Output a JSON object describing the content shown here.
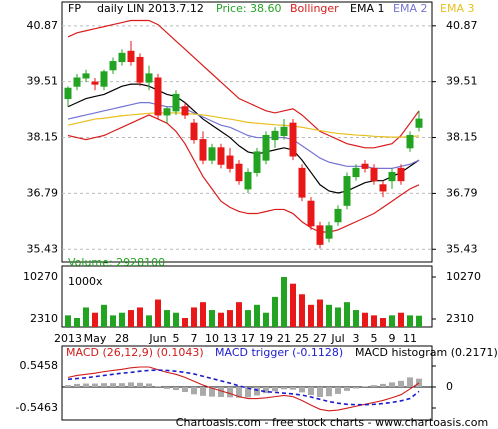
{
  "chart_data": [
    {
      "type": "candlestick",
      "title": "FP",
      "subtitle": "daily LIN 2013.7.12",
      "price_label": "Price: 38.60",
      "open": [
        39.1,
        39.4,
        39.6,
        39.5,
        39.4,
        39.8,
        40.0,
        40.25,
        40.1,
        39.5,
        39.6,
        38.7,
        38.8,
        38.9,
        38.5,
        38.1,
        37.6,
        37.9,
        37.7,
        37.5,
        36.9,
        37.3,
        37.6,
        38.1,
        38.2,
        38.5,
        37.4,
        36.6,
        36.0,
        35.7,
        36.1,
        36.5,
        37.2,
        37.5,
        37.4,
        37.0,
        37.1,
        37.4,
        37.9,
        38.4
      ],
      "high": [
        39.4,
        39.7,
        39.8,
        39.6,
        39.8,
        40.1,
        40.3,
        40.5,
        40.2,
        39.9,
        39.7,
        38.9,
        39.3,
        39.0,
        38.6,
        38.3,
        38.0,
        38.0,
        37.9,
        37.6,
        37.4,
        37.9,
        38.3,
        38.4,
        38.6,
        38.6,
        37.5,
        36.7,
        36.1,
        36.1,
        36.5,
        37.3,
        37.5,
        37.6,
        37.5,
        37.1,
        37.4,
        37.5,
        38.3,
        38.8
      ],
      "low": [
        38.9,
        39.3,
        39.5,
        39.3,
        39.3,
        39.7,
        39.9,
        39.9,
        39.4,
        39.3,
        38.6,
        38.5,
        38.7,
        38.6,
        38.0,
        37.5,
        37.5,
        37.4,
        37.3,
        37.0,
        36.8,
        37.2,
        37.5,
        37.9,
        38.1,
        37.6,
        36.6,
        35.9,
        35.45,
        35.6,
        36.0,
        36.4,
        37.1,
        37.3,
        37.0,
        36.7,
        36.9,
        37.0,
        37.8,
        38.3
      ],
      "close": [
        39.35,
        39.6,
        39.7,
        39.45,
        39.75,
        40.0,
        40.2,
        40.0,
        39.5,
        39.7,
        38.7,
        38.85,
        39.2,
        38.7,
        38.1,
        37.6,
        37.9,
        37.5,
        37.4,
        37.1,
        37.3,
        37.8,
        38.2,
        38.3,
        38.4,
        37.7,
        36.7,
        36.0,
        35.55,
        36.0,
        36.4,
        37.2,
        37.4,
        37.4,
        37.1,
        36.85,
        37.3,
        37.1,
        38.2,
        38.6
      ],
      "up_color": "#22a322",
      "down_color": "#e81818",
      "series": [
        {
          "name": "Bollinger",
          "color": "#d81c1c",
          "upper": [
            40.6,
            40.7,
            40.75,
            40.8,
            40.85,
            40.9,
            40.95,
            41.0,
            41.0,
            41.0,
            40.9,
            40.7,
            40.5,
            40.3,
            40.1,
            39.9,
            39.7,
            39.5,
            39.3,
            39.1,
            39.0,
            38.9,
            38.8,
            38.75,
            38.8,
            38.85,
            38.7,
            38.5,
            38.3,
            38.2,
            38.1,
            38.0,
            37.95,
            37.9,
            37.9,
            37.95,
            38.0,
            38.2,
            38.5,
            38.8
          ],
          "lower": [
            38.2,
            38.15,
            38.1,
            38.15,
            38.2,
            38.3,
            38.4,
            38.5,
            38.6,
            38.7,
            38.6,
            38.5,
            38.3,
            38.0,
            37.6,
            37.2,
            36.9,
            36.6,
            36.45,
            36.35,
            36.3,
            36.3,
            36.35,
            36.4,
            36.4,
            36.3,
            36.1,
            35.95,
            35.85,
            35.85,
            35.9,
            36.0,
            36.1,
            36.2,
            36.3,
            36.45,
            36.6,
            36.75,
            36.9,
            37.0
          ]
        },
        {
          "name": "EMA 1",
          "color": "#000000",
          "values": [
            38.9,
            39.0,
            39.1,
            39.15,
            39.2,
            39.3,
            39.4,
            39.45,
            39.45,
            39.4,
            39.3,
            39.2,
            39.15,
            39.0,
            38.8,
            38.6,
            38.45,
            38.3,
            38.15,
            37.95,
            37.8,
            37.75,
            37.8,
            37.85,
            37.9,
            37.85,
            37.6,
            37.3,
            37.0,
            36.85,
            36.8,
            36.85,
            36.95,
            37.05,
            37.1,
            37.1,
            37.2,
            37.3,
            37.45,
            37.6
          ]
        },
        {
          "name": "EMA 2",
          "color": "#7474d6",
          "values": [
            38.6,
            38.65,
            38.7,
            38.75,
            38.8,
            38.85,
            38.9,
            38.95,
            39.0,
            39.0,
            38.95,
            38.9,
            38.9,
            38.85,
            38.75,
            38.65,
            38.55,
            38.45,
            38.4,
            38.3,
            38.2,
            38.15,
            38.15,
            38.15,
            38.15,
            38.1,
            37.95,
            37.8,
            37.65,
            37.55,
            37.5,
            37.45,
            37.45,
            37.45,
            37.4,
            37.4,
            37.4,
            37.45,
            37.5,
            37.6
          ]
        },
        {
          "name": "EMA 3",
          "color": "#e8c020",
          "values": [
            38.45,
            38.5,
            38.55,
            38.6,
            38.62,
            38.65,
            38.68,
            38.7,
            38.72,
            38.74,
            38.75,
            38.75,
            38.75,
            38.74,
            38.72,
            38.7,
            38.67,
            38.63,
            38.6,
            38.56,
            38.52,
            38.5,
            38.48,
            38.46,
            38.45,
            38.43,
            38.4,
            38.36,
            38.32,
            38.28,
            38.25,
            38.23,
            38.21,
            38.2,
            38.18,
            38.17,
            38.16,
            38.16,
            38.17,
            38.19
          ]
        }
      ],
      "ylim": [
        35.12,
        41.45
      ],
      "yticks": [
        35.43,
        36.79,
        38.15,
        39.51,
        40.87
      ],
      "grid": true
    },
    {
      "type": "bar",
      "title": "Volume: 2928100",
      "unit_label": "1000x",
      "categories": [
        "2013",
        null,
        null,
        "May",
        null,
        null,
        "28",
        null,
        null,
        null,
        "Jun",
        null,
        "5",
        null,
        "7",
        null,
        "10",
        null,
        "13",
        null,
        "17",
        null,
        "19",
        null,
        "21",
        null,
        "25",
        null,
        "27",
        null,
        "Jul",
        null,
        "3",
        null,
        "5",
        null,
        "9",
        null,
        "11",
        null
      ],
      "values": [
        3000,
        2500,
        4500,
        3500,
        5000,
        3000,
        3500,
        4000,
        4500,
        3000,
        6000,
        4000,
        3500,
        2500,
        4500,
        5500,
        4000,
        3500,
        4000,
        5500,
        4000,
        5000,
        3500,
        6500,
        10270,
        9000,
        7000,
        5000,
        6000,
        5000,
        4500,
        5500,
        4000,
        3500,
        3000,
        2500,
        3000,
        3500,
        3000,
        2928.1
      ],
      "ylim": [
        794,
        12355
      ],
      "yticks": [
        2310,
        10270
      ]
    },
    {
      "type": "macd",
      "series": [
        {
          "name": "MACD (26,12,9) (0.1043)",
          "color": "#d01c1c",
          "values": [
            0.25,
            0.3,
            0.33,
            0.36,
            0.4,
            0.43,
            0.46,
            0.5,
            0.52,
            0.52,
            0.45,
            0.38,
            0.33,
            0.25,
            0.15,
            0.05,
            -0.03,
            -0.1,
            -0.17,
            -0.25,
            -0.3,
            -0.3,
            -0.28,
            -0.25,
            -0.22,
            -0.25,
            -0.35,
            -0.47,
            -0.58,
            -0.62,
            -0.6,
            -0.55,
            -0.5,
            -0.45,
            -0.4,
            -0.35,
            -0.28,
            -0.2,
            -0.05,
            0.1043
          ]
        },
        {
          "name": "MACD trigger (-0.1128)",
          "color": "#1c1ccc",
          "dashed": true,
          "values": [
            0.2,
            0.22,
            0.24,
            0.27,
            0.3,
            0.33,
            0.36,
            0.38,
            0.41,
            0.43,
            0.44,
            0.43,
            0.41,
            0.38,
            0.34,
            0.28,
            0.22,
            0.16,
            0.1,
            0.03,
            -0.03,
            -0.08,
            -0.12,
            -0.14,
            -0.16,
            -0.18,
            -0.21,
            -0.26,
            -0.32,
            -0.38,
            -0.42,
            -0.45,
            -0.46,
            -0.46,
            -0.45,
            -0.43,
            -0.4,
            -0.36,
            -0.3,
            -0.1128
          ]
        },
        {
          "name": "MACD histogram (0.2171)",
          "color": "#aaaaaa",
          "axis": "y2",
          "values": [
            0.05,
            0.08,
            0.09,
            0.09,
            0.1,
            0.1,
            0.1,
            0.12,
            0.11,
            0.09,
            0.01,
            -0.05,
            -0.08,
            -0.13,
            -0.19,
            -0.23,
            -0.25,
            -0.26,
            -0.27,
            -0.28,
            -0.27,
            -0.22,
            -0.16,
            -0.11,
            -0.06,
            -0.07,
            -0.14,
            -0.21,
            -0.26,
            -0.24,
            -0.18,
            -0.1,
            -0.04,
            0.01,
            0.05,
            0.08,
            0.12,
            0.16,
            0.25,
            0.2171
          ]
        }
      ],
      "ylim": [
        -0.858,
        1.066
      ],
      "yticks": [
        -0.5463,
        0.5458
      ],
      "y2lim": [
        -0.858,
        1.066
      ],
      "y2ticks": [
        0
      ]
    }
  ],
  "footer": "Chartoasis.com - free stock charts - www.chartoasis.com"
}
